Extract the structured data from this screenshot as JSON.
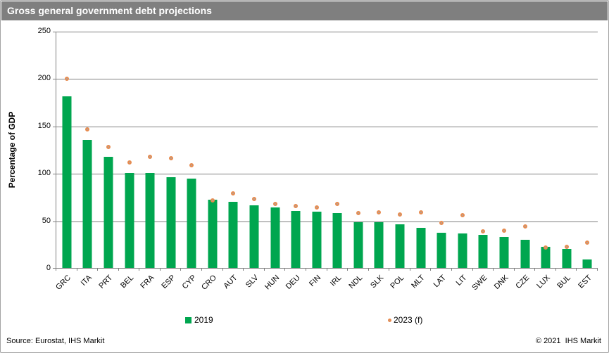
{
  "header": {
    "title": "Gross general government debt projections"
  },
  "footer": {
    "source": "Source: Eurostat, IHS Markit",
    "copyright": "© 2021  IHS Markit"
  },
  "colors": {
    "titlebar_bg": "#7F7F7F",
    "bar_green": "#00A64F",
    "dot_fill": "#A8A8A8",
    "dot_outline": "#E78B4F",
    "gridline": "#808080"
  },
  "chart_data": {
    "type": "bar",
    "title": "Gross general government debt projections",
    "xlabel": "",
    "ylabel": "Percentage of GDP",
    "ylim": [
      0,
      250
    ],
    "yticks": [
      0,
      50,
      100,
      150,
      200,
      250
    ],
    "grid": true,
    "legend_position": "bottom",
    "categories": [
      "GRC",
      "ITA",
      "PRT",
      "BEL",
      "FRA",
      "ESP",
      "CYP",
      "CRO",
      "AUT",
      "SLV",
      "HUN",
      "DEU",
      "FIN",
      "IRL",
      "NDL",
      "SLK",
      "POL",
      "MLT",
      "LAT",
      "LIT",
      "SWE",
      "DNK",
      "CZE",
      "LUX",
      "BUL",
      "EST"
    ],
    "series": [
      {
        "name": "2019",
        "type": "bar",
        "color": "#00A64F",
        "values": [
          181,
          135,
          117,
          100,
          100,
          96,
          94,
          72,
          70,
          66,
          64,
          60,
          59,
          58,
          48,
          48,
          46,
          42,
          37,
          36,
          35,
          33,
          30,
          22,
          20,
          9
        ]
      },
      {
        "name": "2023 (f)",
        "type": "scatter",
        "fill": "#A8A8A8",
        "outline": "#E78B4F",
        "values": [
          201,
          148,
          129,
          113,
          119,
          117,
          110,
          73,
          80,
          74,
          69,
          67,
          65,
          69,
          59,
          60,
          58,
          60,
          49,
          57,
          40,
          41,
          45,
          23,
          24,
          28
        ]
      }
    ]
  }
}
